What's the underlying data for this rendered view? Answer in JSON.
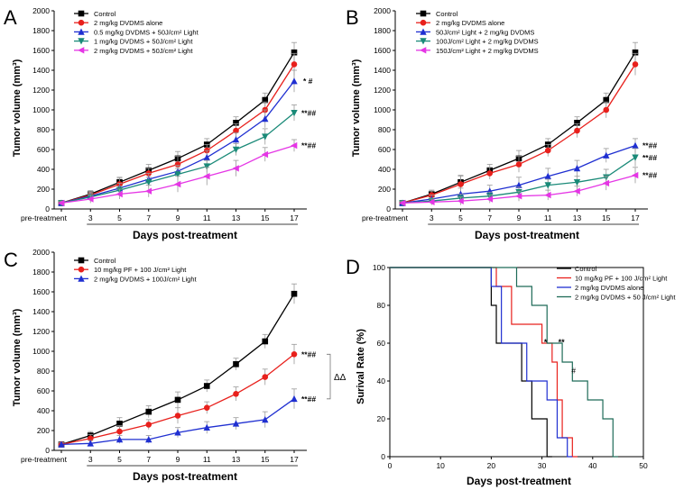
{
  "chart_data": [
    {
      "panel": "A",
      "type": "line",
      "ylabel": "Tumor volume (mm³)",
      "xlabel": "Days post-treatment",
      "categories": [
        "pre-treatment",
        "3",
        "5",
        "7",
        "9",
        "11",
        "13",
        "15",
        "17"
      ],
      "ylim": [
        0,
        2000
      ],
      "yticks": [
        0,
        200,
        400,
        600,
        800,
        1000,
        1200,
        1400,
        1600,
        1800,
        2000
      ],
      "series": [
        {
          "name": "Control",
          "color": "#000000",
          "marker": "square",
          "values": [
            60,
            150,
            270,
            390,
            510,
            650,
            870,
            1100,
            1580
          ],
          "err": [
            20,
            35,
            50,
            60,
            70,
            60,
            60,
            70,
            100
          ]
        },
        {
          "name": "2 mg/kg DVDMS alone",
          "color": "#e8201c",
          "marker": "circle",
          "values": [
            60,
            140,
            250,
            360,
            450,
            590,
            790,
            1000,
            1460
          ],
          "err": [
            20,
            35,
            60,
            50,
            80,
            60,
            70,
            80,
            110
          ]
        },
        {
          "name": "0.5 mg/kg DVDMS + 50J/cm² Light",
          "color": "#1f2fd1",
          "marker": "triangle-up",
          "values": [
            60,
            130,
            210,
            300,
            380,
            520,
            700,
            910,
            1290
          ],
          "err": [
            20,
            40,
            50,
            60,
            60,
            70,
            70,
            90,
            110
          ]
        },
        {
          "name": "1 mg/kg DVDMS + 50J/cm² Light",
          "color": "#1a8a78",
          "marker": "triangle-down",
          "values": [
            60,
            120,
            190,
            270,
            350,
            430,
            600,
            730,
            970
          ],
          "err": [
            20,
            40,
            40,
            50,
            60,
            60,
            60,
            80,
            80
          ]
        },
        {
          "name": "2 mg/kg DVDMS + 50J/cm² Light",
          "color": "#e536e5",
          "marker": "triangle-left",
          "values": [
            60,
            100,
            150,
            180,
            250,
            330,
            410,
            550,
            640
          ],
          "err": [
            20,
            40,
            50,
            60,
            80,
            90,
            80,
            70,
            60
          ]
        }
      ],
      "annotations": [
        "* #",
        "**##",
        "**##"
      ]
    },
    {
      "panel": "B",
      "type": "line",
      "ylabel": "Tumor volume (mm³)",
      "xlabel": "Days post-treatment",
      "categories": [
        "pre-treatment",
        "3",
        "5",
        "7",
        "9",
        "11",
        "13",
        "15",
        "17"
      ],
      "ylim": [
        0,
        2000
      ],
      "yticks": [
        0,
        200,
        400,
        600,
        800,
        1000,
        1200,
        1400,
        1600,
        1800,
        2000
      ],
      "series": [
        {
          "name": "Control",
          "color": "#000000",
          "marker": "square",
          "values": [
            60,
            150,
            270,
            390,
            510,
            650,
            870,
            1100,
            1580
          ],
          "err": [
            20,
            40,
            60,
            60,
            80,
            60,
            60,
            70,
            100
          ]
        },
        {
          "name": "2 mg/kg DVDMS alone",
          "color": "#e8201c",
          "marker": "circle",
          "values": [
            60,
            140,
            250,
            360,
            450,
            590,
            790,
            1000,
            1460
          ],
          "err": [
            20,
            40,
            90,
            60,
            80,
            60,
            70,
            80,
            110
          ]
        },
        {
          "name": "50J/cm² Light + 2 mg/kg DVDMS",
          "color": "#1f2fd1",
          "marker": "triangle-up",
          "values": [
            60,
            100,
            150,
            180,
            240,
            330,
            410,
            540,
            640
          ],
          "err": [
            20,
            40,
            60,
            60,
            80,
            80,
            80,
            70,
            70
          ]
        },
        {
          "name": "100J/cm² Light + 2 mg/kg DVDMS",
          "color": "#1a8a78",
          "marker": "triangle-down",
          "values": [
            60,
            80,
            110,
            130,
            170,
            240,
            270,
            320,
            520
          ],
          "err": [
            20,
            30,
            40,
            40,
            50,
            60,
            60,
            80,
            90
          ]
        },
        {
          "name": "150J/cm² Light + 2 mg/kg DVDMS",
          "color": "#e536e5",
          "marker": "triangle-left",
          "values": [
            60,
            70,
            80,
            100,
            130,
            140,
            180,
            260,
            340
          ],
          "err": [
            20,
            30,
            40,
            40,
            50,
            50,
            50,
            70,
            80
          ]
        }
      ],
      "annotations": [
        "**##",
        "**##",
        "**##"
      ]
    },
    {
      "panel": "C",
      "type": "line",
      "ylabel": "Tumor volume (mm³)",
      "xlabel": "Days post-treatment",
      "categories": [
        "pre-treatment",
        "3",
        "5",
        "7",
        "9",
        "11",
        "13",
        "15",
        "17"
      ],
      "ylim": [
        0,
        2000
      ],
      "yticks": [
        0,
        200,
        400,
        600,
        800,
        1000,
        1200,
        1400,
        1600,
        1800,
        2000
      ],
      "series": [
        {
          "name": "Control",
          "color": "#000000",
          "marker": "square",
          "values": [
            60,
            150,
            270,
            390,
            510,
            650,
            870,
            1100,
            1580
          ],
          "err": [
            20,
            40,
            60,
            60,
            80,
            60,
            60,
            70,
            100
          ]
        },
        {
          "name": "10 mg/kg PF + 100 J/cm² Light",
          "color": "#e8201c",
          "marker": "circle",
          "values": [
            60,
            120,
            190,
            260,
            350,
            430,
            570,
            740,
            970
          ],
          "err": [
            20,
            40,
            60,
            50,
            80,
            60,
            70,
            80,
            100
          ]
        },
        {
          "name": "2 mg/kg DVDMS + 100J/cm² Light",
          "color": "#1f2fd1",
          "marker": "triangle-up",
          "values": [
            60,
            70,
            110,
            110,
            180,
            230,
            270,
            310,
            520
          ],
          "err": [
            20,
            30,
            40,
            40,
            50,
            60,
            60,
            80,
            100
          ]
        }
      ],
      "annotations": [
        "**##",
        "**##",
        "ΔΔ"
      ]
    },
    {
      "panel": "D",
      "type": "line",
      "subtype": "kaplan-meier",
      "ylabel": "Surival Rate (%)",
      "xlabel": "Days post-treatment",
      "xlim": [
        0,
        50
      ],
      "ylim": [
        0,
        100
      ],
      "xticks": [
        0,
        10,
        20,
        30,
        40,
        50
      ],
      "yticks": [
        0,
        20,
        40,
        60,
        80,
        100
      ],
      "series": [
        {
          "name": "Control",
          "color": "#000000",
          "x": [
            0,
            20,
            20,
            21,
            21,
            26,
            26,
            28,
            28,
            31,
            31,
            32
          ],
          "y": [
            100,
            100,
            80,
            80,
            60,
            60,
            40,
            40,
            20,
            20,
            0,
            0
          ]
        },
        {
          "name": "10 mg/kg PF + 100 J/cm² Light",
          "color": "#e8201c",
          "x": [
            0,
            21,
            21,
            24,
            24,
            30,
            30,
            32,
            32,
            33,
            33,
            34,
            34,
            36,
            36,
            37
          ],
          "y": [
            100,
            100,
            90,
            90,
            70,
            70,
            60,
            60,
            50,
            50,
            30,
            30,
            10,
            10,
            0,
            0
          ]
        },
        {
          "name": "2 mg/kg DVDMS alone",
          "color": "#1f2fd1",
          "x": [
            0,
            20,
            20,
            22,
            22,
            27,
            27,
            31,
            31,
            33,
            33,
            35,
            35,
            36
          ],
          "y": [
            100,
            100,
            90,
            90,
            60,
            60,
            40,
            40,
            30,
            30,
            10,
            10,
            0,
            0
          ]
        },
        {
          "name": "2 mg/kg DVDMS + 50 J/cm² Light",
          "color": "#1e6b58",
          "x": [
            0,
            25,
            25,
            28,
            28,
            31,
            31,
            34,
            34,
            36,
            36,
            39,
            39,
            42,
            42,
            44,
            44,
            45
          ],
          "y": [
            100,
            100,
            90,
            90,
            80,
            80,
            60,
            60,
            50,
            50,
            40,
            40,
            30,
            30,
            20,
            20,
            0,
            0
          ]
        }
      ],
      "annotations": [
        "*",
        "**",
        "#"
      ]
    }
  ],
  "panel_labels": [
    "A",
    "B",
    "C",
    "D"
  ],
  "labels": {
    "a": {
      "title": "A",
      "ylabel": "Tumor volume (mm³)",
      "xlabel": "Days post-treatment"
    },
    "b": {
      "title": "B",
      "ylabel": "Tumor volume (mm³)",
      "xlabel": "Days post-treatment"
    },
    "c": {
      "title": "C",
      "ylabel": "Tumor volume (mm³)",
      "xlabel": "Days post-treatment"
    },
    "d": {
      "title": "D",
      "ylabel": "Surival Rate (%)",
      "xlabel": "Days post-treatment"
    }
  }
}
